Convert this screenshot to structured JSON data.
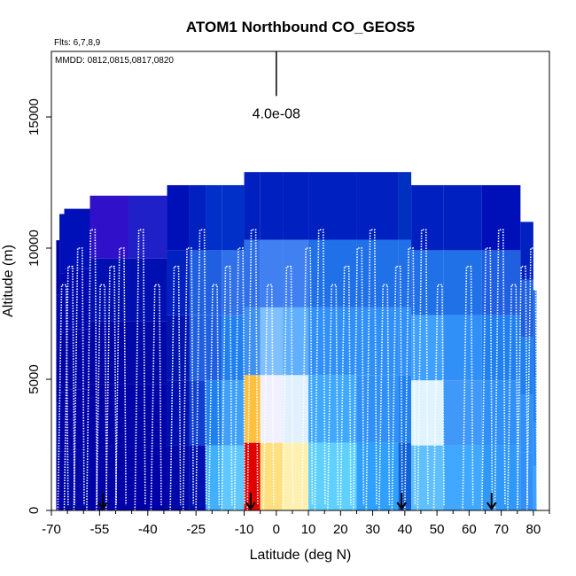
{
  "chart_data": {
    "type": "heatmap",
    "title": "ATOM1 Northbound CO_GEOS5",
    "xlabel": "Latitude (deg N)",
    "ylabel": "Altitude (m)",
    "xlim": [
      -70,
      85
    ],
    "ylim": [
      0,
      17500
    ],
    "x_ticks": [
      -70,
      -55,
      -40,
      -25,
      -10,
      0,
      10,
      20,
      30,
      40,
      50,
      60,
      70,
      80
    ],
    "x_tick_labels": [
      "-70",
      "-55",
      "-40",
      "-25",
      "-10",
      "0",
      "10",
      "20",
      "30",
      "40",
      "50",
      "60",
      "70",
      "80"
    ],
    "x_minor_ticks": [
      -65,
      -60,
      -50,
      -45,
      -35,
      -30,
      -20,
      -15,
      -5,
      5,
      15,
      25,
      35,
      45,
      55,
      65,
      75,
      85
    ],
    "y_ticks": [
      0,
      5000,
      10000,
      15000
    ],
    "y_tick_labels": [
      "0",
      "5000",
      "10000",
      "15000"
    ],
    "notes": {
      "flights": "Flts: 6,7,8,9",
      "dates": "MMDD: 0812,0815,0817,0820"
    },
    "scale_bar": {
      "label": "4.0e-08",
      "x": 0,
      "y_from": 15800,
      "y_to": 17500
    },
    "arrows_at_latitude": [
      -54,
      -8,
      39,
      67
    ],
    "flight_track_description": "white dotted profile lines of aircraft ascents and descents",
    "columns": [
      {
        "lat_from": -68.5,
        "lat_to": -67.5,
        "top": 10300,
        "colors": [
          "#0000a0",
          "#0010b0",
          "#0000a8",
          "#0008a8",
          "#0000a0"
        ]
      },
      {
        "lat_from": -67.5,
        "lat_to": -66,
        "top": 11300,
        "colors": [
          "#0000a8",
          "#0000a8",
          "#0000a8",
          "#0008b0",
          "#0010b8"
        ]
      },
      {
        "lat_from": -66,
        "lat_to": -58,
        "top": 11500,
        "colors": [
          "#0008a8",
          "#0000a8",
          "#0004a8",
          "#0008b0",
          "#0010b8"
        ]
      },
      {
        "lat_from": -58,
        "lat_to": -46,
        "top": 12000,
        "colors": [
          "#0000a8",
          "#0000a8",
          "#0004a8",
          "#0010b0",
          "#3010c8"
        ]
      },
      {
        "lat_from": -46,
        "lat_to": -34,
        "top": 12000,
        "colors": [
          "#0000a8",
          "#0004a8",
          "#0008a8",
          "#0010b0",
          "#2020c8"
        ]
      },
      {
        "lat_from": -34,
        "lat_to": -27,
        "top": 12400,
        "colors": [
          "#0008a8",
          "#0010b0",
          "#0014b0",
          "#0020c0",
          "#0010b8"
        ]
      },
      {
        "lat_from": -27,
        "lat_to": -22,
        "top": 12400,
        "colors": [
          "#0010b0",
          "#1040d0",
          "#2060e0",
          "#2060e0",
          "#0020c0"
        ]
      },
      {
        "lat_from": -22,
        "lat_to": -17,
        "top": 12400,
        "colors": [
          "#40b0ff",
          "#2080f0",
          "#2060e0",
          "#2060e0",
          "#0030c8"
        ]
      },
      {
        "lat_from": -17,
        "lat_to": -10,
        "top": 12400,
        "colors": [
          "#60c8ff",
          "#40a0f8",
          "#2080f0",
          "#3070e8",
          "#0030c8"
        ]
      },
      {
        "lat_from": -10,
        "lat_to": -5,
        "top": 12900,
        "colors": [
          "#e00000",
          "#ffc040",
          "#4090f0",
          "#3070e8",
          "#0020c0"
        ]
      },
      {
        "lat_from": -5,
        "lat_to": 2,
        "top": 12900,
        "colors": [
          "#ffe080",
          "#f0f0ff",
          "#80c0ff",
          "#4080f0",
          "#0020c0"
        ]
      },
      {
        "lat_from": 2,
        "lat_to": 10,
        "top": 12900,
        "colors": [
          "#fff0b0",
          "#e0f0ff",
          "#60b0ff",
          "#4080f0",
          "#0020c0"
        ]
      },
      {
        "lat_from": 10,
        "lat_to": 25,
        "top": 12900,
        "colors": [
          "#60d0ff",
          "#40a8ff",
          "#3090f8",
          "#2070e8",
          "#0020c0"
        ]
      },
      {
        "lat_from": 25,
        "lat_to": 38,
        "top": 12900,
        "colors": [
          "#30a0ff",
          "#3090f8",
          "#3090f8",
          "#2070e8",
          "#0020c0"
        ]
      },
      {
        "lat_from": 38,
        "lat_to": 42,
        "top": 12900,
        "colors": [
          "#1060d8",
          "#2080f0",
          "#3090f8",
          "#2070e8",
          "#0030c0"
        ]
      },
      {
        "lat_from": 42,
        "lat_to": 52,
        "top": 12400,
        "colors": [
          "#60c0ff",
          "#e0f4ff",
          "#40a0ff",
          "#2070e8",
          "#0020c0"
        ]
      },
      {
        "lat_from": 52,
        "lat_to": 64,
        "top": 12400,
        "colors": [
          "#40a8ff",
          "#4098f8",
          "#3090f8",
          "#2070e8",
          "#0020c0"
        ]
      },
      {
        "lat_from": 64,
        "lat_to": 76,
        "top": 12400,
        "colors": [
          "#3098f8",
          "#3090f8",
          "#2080f0",
          "#2060e0",
          "#0010b8"
        ]
      },
      {
        "lat_from": 76,
        "lat_to": 80,
        "top": 11000,
        "colors": [
          "#3090f8",
          "#3090f8",
          "#2080f0",
          "#2060e0",
          "#0020c0"
        ]
      },
      {
        "lat_from": 80,
        "lat_to": 81,
        "top": 8400,
        "colors": [
          "#40a0ff",
          "#3090f8",
          "#2080f0",
          "#2070e8",
          "#2070e8"
        ]
      }
    ]
  }
}
